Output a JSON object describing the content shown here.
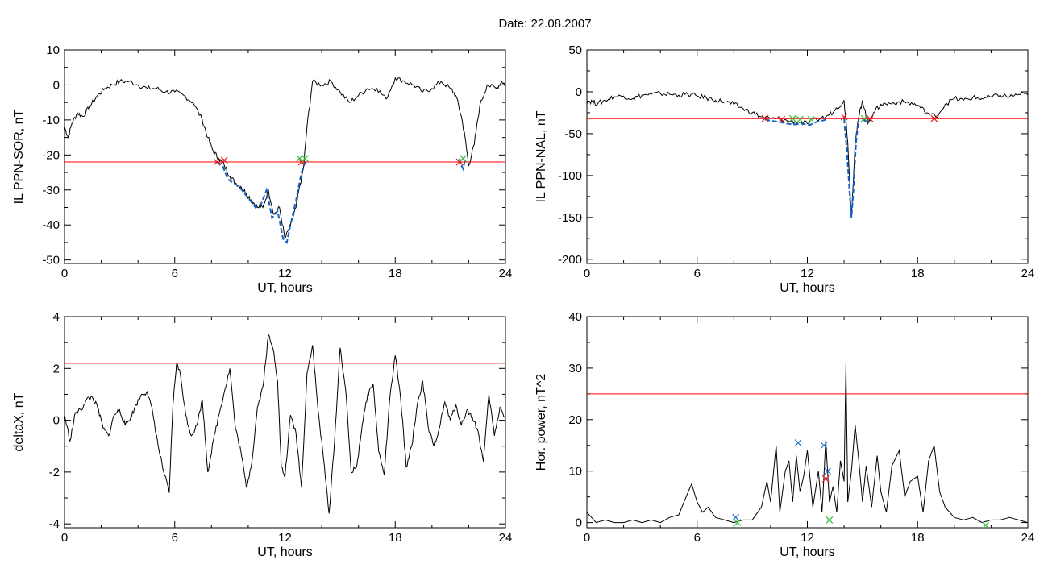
{
  "title": "Date:  22.08.2007",
  "colors": {
    "trace": "#000000",
    "threshold": "#ff0000",
    "event": "#1060c8",
    "marker_red": "#e02020",
    "marker_green": "#30c030",
    "marker_blue": "#2070d0"
  },
  "chart_data": [
    {
      "type": "line",
      "xlabel": "UT, hours",
      "ylabel": "IL PPN-SOR, nT",
      "xlim": [
        0,
        24
      ],
      "ylim": [
        -51,
        10
      ],
      "xticks": [
        0,
        6,
        12,
        18,
        24
      ],
      "yticks": [
        10,
        0,
        -10,
        -20,
        -30,
        -40,
        -50
      ],
      "threshold": -22,
      "x": [
        0,
        0.2,
        0.4,
        0.7,
        1,
        1.4,
        1.8,
        2.2,
        2.6,
        3,
        3.5,
        4,
        4.5,
        5,
        5.5,
        6,
        6.5,
        7,
        7.5,
        7.8,
        8.1,
        8.4,
        8.7,
        9,
        9.3,
        9.6,
        9.9,
        10.2,
        10.5,
        10.8,
        11.1,
        11.4,
        11.7,
        12,
        12.3,
        12.6,
        12.8,
        13,
        13.2,
        13.5,
        14,
        14.5,
        15,
        15.5,
        16,
        16.5,
        17,
        17.5,
        18,
        18.5,
        19,
        19.5,
        20,
        20.5,
        21,
        21.3,
        21.6,
        21.8,
        22,
        22.3,
        22.6,
        23,
        23.5,
        23.8,
        24
      ],
      "y": [
        -12,
        -15,
        -11,
        -8,
        -9,
        -6,
        -3,
        -1,
        0,
        1,
        1,
        0,
        -1,
        -1,
        -2,
        -2,
        -3,
        -5,
        -10,
        -15,
        -19,
        -21,
        -23,
        -26,
        -28,
        -29,
        -31,
        -33,
        -35,
        -35,
        -30,
        -37,
        -35,
        -44,
        -40,
        -35,
        -29,
        -24,
        -12,
        1,
        0,
        1,
        -2,
        -5,
        -3,
        -1,
        -1,
        -4,
        2,
        1,
        0,
        -2,
        -1,
        1,
        -1,
        -3,
        -9,
        -15,
        -23,
        -17,
        -6,
        0,
        -1,
        1,
        0
      ],
      "events": [
        {
          "x": [
            8.3,
            8.6,
            8.9,
            9.2,
            9.5,
            9.8,
            10.1,
            10.4,
            10.7,
            11,
            11.3,
            11.6,
            11.9,
            12.1,
            12.3,
            12.6,
            12.9,
            13.1,
            13.2
          ],
          "y": [
            -22,
            -23,
            -27,
            -28,
            -29,
            -31,
            -33,
            -35,
            -34,
            -30,
            -38,
            -36,
            -44,
            -45,
            -40,
            -33,
            -25,
            -22,
            -22
          ]
        },
        {
          "x": [
            21.5,
            21.6,
            21.7,
            21.8
          ],
          "y": [
            -21,
            -23,
            -24,
            -21
          ]
        }
      ],
      "markers": [
        {
          "x": 8.3,
          "y": -22,
          "color": "red"
        },
        {
          "x": 8.7,
          "y": -21.5,
          "color": "red"
        },
        {
          "x": 12.9,
          "y": -22,
          "color": "red"
        },
        {
          "x": 13.1,
          "y": -21,
          "color": "green"
        },
        {
          "x": 12.8,
          "y": -21,
          "color": "green"
        },
        {
          "x": 21.5,
          "y": -22,
          "color": "red"
        },
        {
          "x": 21.7,
          "y": -21,
          "color": "green"
        }
      ]
    },
    {
      "type": "line",
      "xlabel": "UT, hours",
      "ylabel": "IL PPN-NAL, nT",
      "xlim": [
        0,
        24
      ],
      "ylim": [
        -205,
        50
      ],
      "xticks": [
        0,
        6,
        12,
        18,
        24
      ],
      "yticks": [
        50,
        0,
        -50,
        -100,
        -150,
        -200
      ],
      "threshold": -32,
      "x": [
        0,
        0.3,
        0.6,
        1,
        1.5,
        2,
        2.5,
        3,
        3.5,
        4,
        4.5,
        5,
        5.5,
        6,
        6.5,
        7,
        7.5,
        8,
        8.5,
        9,
        9.5,
        10,
        10.5,
        11,
        11.5,
        12,
        12.5,
        13,
        13.5,
        14,
        14.2,
        14.4,
        14.6,
        14.8,
        15,
        15.3,
        15.6,
        16,
        16.5,
        17,
        17.5,
        18,
        18.5,
        19,
        19.5,
        20,
        20.5,
        21,
        21.5,
        22,
        22.5,
        23,
        23.5,
        24
      ],
      "y": [
        -10,
        -12,
        -14,
        -10,
        -6,
        -5,
        -8,
        -4,
        -3,
        -2,
        -3,
        -4,
        -3,
        -5,
        -7,
        -10,
        -12,
        -15,
        -20,
        -25,
        -30,
        -32,
        -33,
        -35,
        -36,
        -38,
        -33,
        -30,
        -22,
        -10,
        -60,
        -150,
        -60,
        -30,
        -10,
        -38,
        -25,
        -15,
        -14,
        -12,
        -13,
        -16,
        -25,
        -30,
        -15,
        -8,
        -10,
        -7,
        -8,
        -6,
        -4,
        -6,
        -3,
        -4
      ],
      "events": [
        {
          "x": [
            9.7,
            10.1,
            10.5,
            10.9,
            11.3,
            11.7,
            12.1,
            12.5,
            12.9,
            13.1
          ],
          "y": [
            -33,
            -35,
            -36,
            -38,
            -39,
            -38,
            -40,
            -36,
            -34,
            -32
          ]
        },
        {
          "x": [
            14,
            14.15,
            14.3,
            14.4,
            14.5,
            14.65,
            14.8
          ],
          "y": [
            -32,
            -70,
            -120,
            -150,
            -120,
            -60,
            -32
          ]
        },
        {
          "x": [
            15,
            15.2,
            15.4
          ],
          "y": [
            -32,
            -36,
            -33
          ]
        }
      ],
      "markers": [
        {
          "x": 9.7,
          "y": -32,
          "color": "red"
        },
        {
          "x": 10.6,
          "y": -33,
          "color": "red"
        },
        {
          "x": 11.2,
          "y": -32,
          "color": "green"
        },
        {
          "x": 11.6,
          "y": -33,
          "color": "green"
        },
        {
          "x": 12.2,
          "y": -33,
          "color": "green"
        },
        {
          "x": 14,
          "y": -30,
          "color": "red"
        },
        {
          "x": 15.1,
          "y": -32,
          "color": "green"
        },
        {
          "x": 15.4,
          "y": -32,
          "color": "red"
        },
        {
          "x": 18.9,
          "y": -32,
          "color": "red"
        }
      ]
    },
    {
      "type": "line",
      "xlabel": "UT, hours",
      "ylabel": "deltaX, nT",
      "xlim": [
        0,
        24
      ],
      "ylim": [
        -4.15,
        4
      ],
      "xticks": [
        0,
        6,
        12,
        18,
        24
      ],
      "yticks": [
        4,
        2,
        0,
        -2,
        -4
      ],
      "threshold": 2.2,
      "x": [
        0,
        0.3,
        0.6,
        0.9,
        1.2,
        1.5,
        1.8,
        2.1,
        2.4,
        2.7,
        3,
        3.3,
        3.6,
        3.9,
        4.2,
        4.5,
        4.8,
        5.1,
        5.4,
        5.7,
        5.9,
        6.1,
        6.3,
        6.6,
        6.9,
        7.2,
        7.5,
        7.8,
        8.1,
        8.4,
        8.7,
        9,
        9.3,
        9.6,
        9.9,
        10.2,
        10.5,
        10.8,
        11.1,
        11.4,
        11.6,
        11.8,
        12,
        12.3,
        12.6,
        12.9,
        13.2,
        13.5,
        13.8,
        14.1,
        14.4,
        14.7,
        15,
        15.3,
        15.6,
        15.9,
        16.2,
        16.5,
        16.8,
        17.1,
        17.4,
        17.7,
        18,
        18.3,
        18.6,
        18.9,
        19.2,
        19.5,
        19.8,
        20.1,
        20.4,
        20.7,
        21,
        21.3,
        21.6,
        21.9,
        22.2,
        22.5,
        22.8,
        23.1,
        23.4,
        23.7,
        24
      ],
      "y": [
        0.2,
        -0.8,
        0.3,
        0.4,
        0.8,
        0.9,
        0.5,
        -0.3,
        -0.6,
        0.2,
        0.4,
        -0.2,
        0.1,
        0.6,
        1.0,
        1.1,
        0.3,
        -1.0,
        -2.0,
        -2.8,
        0.6,
        2.2,
        1.8,
        0.2,
        -0.6,
        -0.2,
        0.8,
        -2.0,
        -0.8,
        0.2,
        1.1,
        2.0,
        -0.3,
        -1.2,
        -2.6,
        -1.6,
        0.5,
        1.3,
        3.3,
        2.6,
        1.5,
        -1.8,
        -2.2,
        0.2,
        -0.5,
        -2.6,
        1.8,
        2.9,
        0.4,
        -1.5,
        -3.6,
        -0.8,
        2.8,
        1.2,
        -2.0,
        -1.8,
        -0.2,
        1.0,
        1.4,
        -1.2,
        -2.1,
        0.8,
        2.5,
        0.8,
        -1.8,
        -1.0,
        0.6,
        1.5,
        -0.3,
        -1.0,
        -0.3,
        0.7,
        0.0,
        0.6,
        -0.2,
        0.4,
        0.1,
        -0.4,
        -1.6,
        1.0,
        -0.6,
        0.5,
        0.1
      ]
    },
    {
      "type": "line",
      "xlabel": "UT, hours",
      "ylabel": "Hor. power, nT^2",
      "xlim": [
        0,
        24
      ],
      "ylim": [
        -1,
        40
      ],
      "xticks": [
        0,
        6,
        12,
        18,
        24
      ],
      "yticks": [
        40,
        30,
        20,
        10,
        0
      ],
      "threshold": 25,
      "x": [
        0,
        0.5,
        1,
        1.5,
        2,
        2.5,
        3,
        3.5,
        4,
        4.5,
        5,
        5.4,
        5.7,
        6,
        6.3,
        6.6,
        7,
        7.5,
        8,
        8.5,
        9,
        9.5,
        9.8,
        10,
        10.3,
        10.5,
        10.8,
        11,
        11.2,
        11.4,
        11.6,
        11.8,
        12,
        12.3,
        12.6,
        12.8,
        13,
        13.2,
        13.4,
        13.6,
        13.8,
        14,
        14.1,
        14.2,
        14.4,
        14.6,
        14.8,
        15,
        15.2,
        15.5,
        15.8,
        16,
        16.3,
        16.6,
        17,
        17.3,
        17.6,
        18,
        18.3,
        18.6,
        18.9,
        19.2,
        19.5,
        20,
        20.5,
        21,
        21.5,
        22,
        22.5,
        23,
        23.5,
        24
      ],
      "y": [
        2,
        0,
        0.5,
        0,
        0,
        0.5,
        0,
        0.5,
        0,
        1,
        1.5,
        5,
        7.5,
        4,
        2,
        3,
        1,
        0.5,
        0,
        0.5,
        0.5,
        3,
        8,
        4,
        15,
        2,
        10,
        12,
        4,
        13,
        6,
        9,
        14,
        3,
        10,
        2,
        16,
        4,
        7,
        2,
        12,
        8,
        31,
        4,
        10,
        19,
        12,
        4,
        11,
        3,
        13,
        6,
        2,
        11,
        14,
        5,
        8,
        9,
        2,
        12,
        15,
        6,
        3,
        1,
        0.5,
        1,
        0,
        0.5,
        0.5,
        1,
        0.5,
        0
      ],
      "markers": [
        {
          "x": 8.1,
          "y": 1,
          "color": "blue"
        },
        {
          "x": 11.5,
          "y": 15.5,
          "color": "blue"
        },
        {
          "x": 12.9,
          "y": 15,
          "color": "blue"
        },
        {
          "x": 13.1,
          "y": 10,
          "color": "blue"
        },
        {
          "x": 13.0,
          "y": 8.5,
          "color": "red"
        },
        {
          "x": 13.2,
          "y": 0.5,
          "color": "green"
        },
        {
          "x": 8.2,
          "y": 0,
          "color": "green"
        },
        {
          "x": 21.7,
          "y": -0.5,
          "color": "green"
        }
      ]
    }
  ]
}
